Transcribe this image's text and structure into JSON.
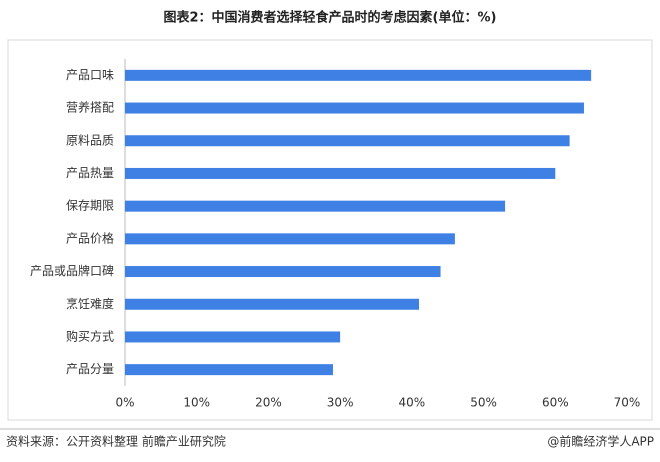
{
  "chart_data": {
    "type": "barh",
    "title": "图表2：中国消费者选择轻食产品时的考虑因素(单位：%)",
    "categories": [
      "产品口味",
      "营养搭配",
      "原料品质",
      "产品热量",
      "保存期限",
      "产品价格",
      "产品或品牌口碑",
      "烹饪难度",
      "购买方式",
      "产品分量"
    ],
    "values": [
      65,
      64,
      62,
      60,
      53,
      46,
      44,
      41,
      30,
      29
    ],
    "color": "#3f80e4",
    "xlim": [
      0,
      70
    ],
    "xticks": [
      {
        "value": 0,
        "label": "0%"
      },
      {
        "value": 10,
        "label": "10%"
      },
      {
        "value": 20,
        "label": "20%"
      },
      {
        "value": 30,
        "label": "30%"
      },
      {
        "value": 40,
        "label": "40%"
      },
      {
        "value": 50,
        "label": "50%"
      },
      {
        "value": 60,
        "label": "60%"
      },
      {
        "value": 70,
        "label": "70%"
      }
    ],
    "grid": false,
    "source": "资料来源：公开资料整理 前瞻产业研究院",
    "credit": "@前瞻经济学人APP"
  }
}
